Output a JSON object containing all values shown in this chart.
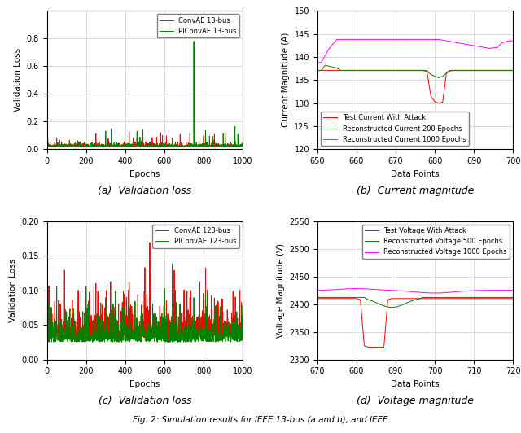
{
  "fig_width": 6.4,
  "fig_height": 5.32,
  "dpi": 100,
  "panel_a": {
    "xlabel": "Epochs",
    "ylabel": "Validation Loss",
    "xlim": [
      0,
      1000
    ],
    "ylim": [
      0.0,
      1.0
    ],
    "yticks": [
      0.0,
      0.2,
      0.4,
      0.6,
      0.8
    ],
    "xticks": [
      0,
      200,
      400,
      600,
      800,
      1000
    ],
    "legend": [
      "ConvAE 13-bus",
      "PIConvAE 13-bus"
    ],
    "colors": [
      "#FF0000",
      "#008000"
    ],
    "subcaption": "(a)  Validation loss"
  },
  "panel_b": {
    "xlabel": "Data Points",
    "ylabel": "Current Magnitude (A)",
    "xlim": [
      650,
      700
    ],
    "ylim": [
      120,
      150
    ],
    "yticks": [
      120,
      125,
      130,
      135,
      140,
      145,
      150
    ],
    "xticks": [
      650,
      660,
      670,
      680,
      690,
      700
    ],
    "legend": [
      "Test Current With Attack",
      "Reconstructed Current 200 Epochs",
      "Reconstructed Current 1000 Epochs"
    ],
    "colors": [
      "#FF0000",
      "#008000",
      "#FF00FF"
    ],
    "subcaption": "(b)  Current magnitude"
  },
  "panel_c": {
    "xlabel": "Epochs",
    "ylabel": "Validation Loss",
    "xlim": [
      0,
      1000
    ],
    "ylim": [
      0.0,
      0.2
    ],
    "yticks": [
      0.0,
      0.05,
      0.1,
      0.15,
      0.2
    ],
    "xticks": [
      0,
      200,
      400,
      600,
      800,
      1000
    ],
    "legend": [
      "ConvAE 123-bus",
      "PIConvAE 123-bus"
    ],
    "colors": [
      "#FF0000",
      "#008000"
    ],
    "subcaption": "(c)  Validation loss"
  },
  "panel_d": {
    "xlabel": "Data Points",
    "ylabel": "Voltage Magnitude (V)",
    "xlim": [
      670,
      720
    ],
    "ylim": [
      2300,
      2550
    ],
    "yticks": [
      2300,
      2350,
      2400,
      2450,
      2500,
      2550
    ],
    "xticks": [
      670,
      680,
      690,
      700,
      710,
      720
    ],
    "legend": [
      "Test Voltage With Attack",
      "Reconstructed Voltage 500 Epochs",
      "Reconstructed Voltage 1000 Epochs"
    ],
    "colors": [
      "#FF0000",
      "#008000",
      "#FF00FF"
    ],
    "subcaption": "(d)  Voltage magnitude"
  },
  "grid_color": "#CCCCCC",
  "legend_fontsize": 6.0,
  "axis_fontsize": 7.5,
  "tick_fontsize": 7.0,
  "subcap_fontsize": 9.0,
  "caption_text": "Fig. 2: Simulation results for IEEE 13-bus (a and b), and IEEE",
  "caption_fontsize": 7.5
}
